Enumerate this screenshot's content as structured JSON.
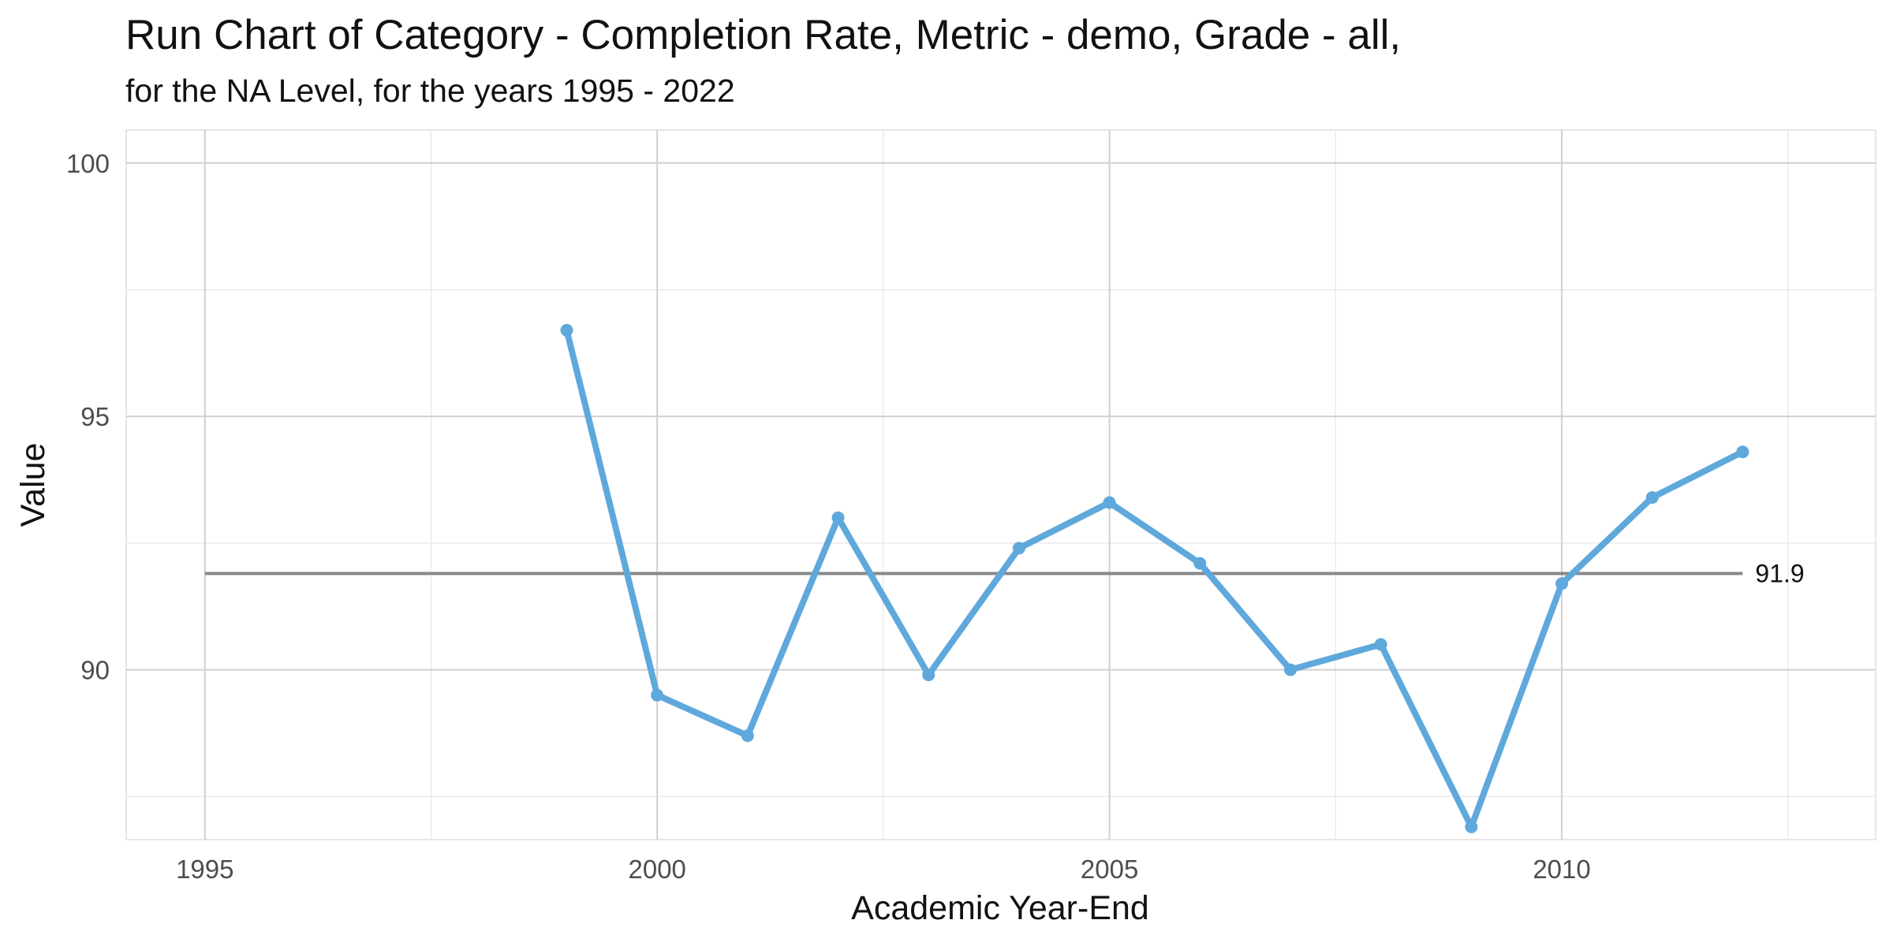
{
  "chart_data": {
    "type": "line",
    "title": "Run Chart of Category - Completion Rate, Metric - demo, Grade - all,",
    "subtitle": "for the NA Level, for the years 1995 - 2022",
    "xlabel": "Academic Year-End",
    "ylabel": "Value",
    "xlim": [
      1994.13,
      2013.47
    ],
    "ylim": [
      86.65,
      100.65
    ],
    "x_ticks": [
      1995,
      2000,
      2005,
      2010
    ],
    "y_ticks": [
      90,
      95,
      100
    ],
    "x_tick_labels": [
      "1995",
      "2000",
      "2005",
      "2010"
    ],
    "y_tick_labels": [
      "90",
      "95",
      "100"
    ],
    "grid": true,
    "legend": "none",
    "series": [
      {
        "x": [
          1999,
          2000,
          2001,
          2002,
          2003,
          2004,
          2005,
          2006,
          2007,
          2008,
          2009,
          2010,
          2011,
          2012
        ],
        "values": [
          96.7,
          89.5,
          88.7,
          93.0,
          89.9,
          92.4,
          93.3,
          92.1,
          90.0,
          90.5,
          86.9,
          91.7,
          93.4,
          94.3
        ],
        "color": "#5fa8dc"
      }
    ],
    "reference_line": {
      "value": 91.9,
      "label": "91.9",
      "x_start": 1995,
      "x_end": 2012,
      "color": "#888888"
    }
  }
}
